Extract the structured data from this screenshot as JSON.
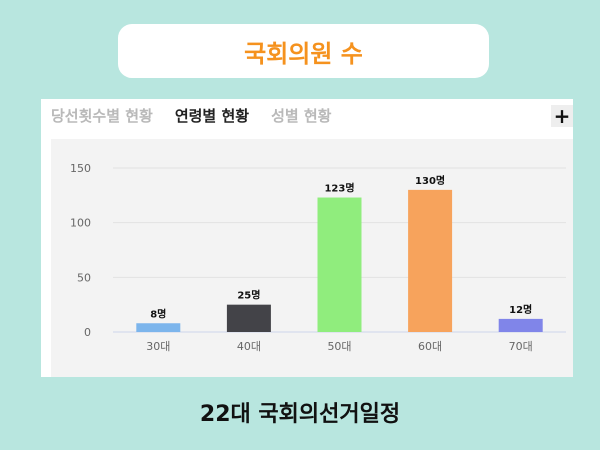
{
  "header": {
    "title": "국회의원 수",
    "title_color": "#f5921e"
  },
  "tabs": [
    {
      "label": "당선횟수별 현황",
      "active": false
    },
    {
      "label": "연령별 현황",
      "active": true
    },
    {
      "label": "성별 현황",
      "active": false
    }
  ],
  "plus_label": "+",
  "footer": {
    "text": "22대 국회의선거일정"
  },
  "chart_data": {
    "type": "bar",
    "categories": [
      "30대",
      "40대",
      "50대",
      "60대",
      "70대"
    ],
    "values": [
      8,
      25,
      123,
      130,
      12
    ],
    "data_labels": [
      "8명",
      "25명",
      "123명",
      "130명",
      "12명"
    ],
    "colors": [
      "#7cb5ec",
      "#434348",
      "#90ed7d",
      "#f7a35c",
      "#8085e9"
    ],
    "yticks": [
      0,
      50,
      100,
      150
    ],
    "ylim": [
      0,
      150
    ],
    "grid": true,
    "legend": "none"
  }
}
